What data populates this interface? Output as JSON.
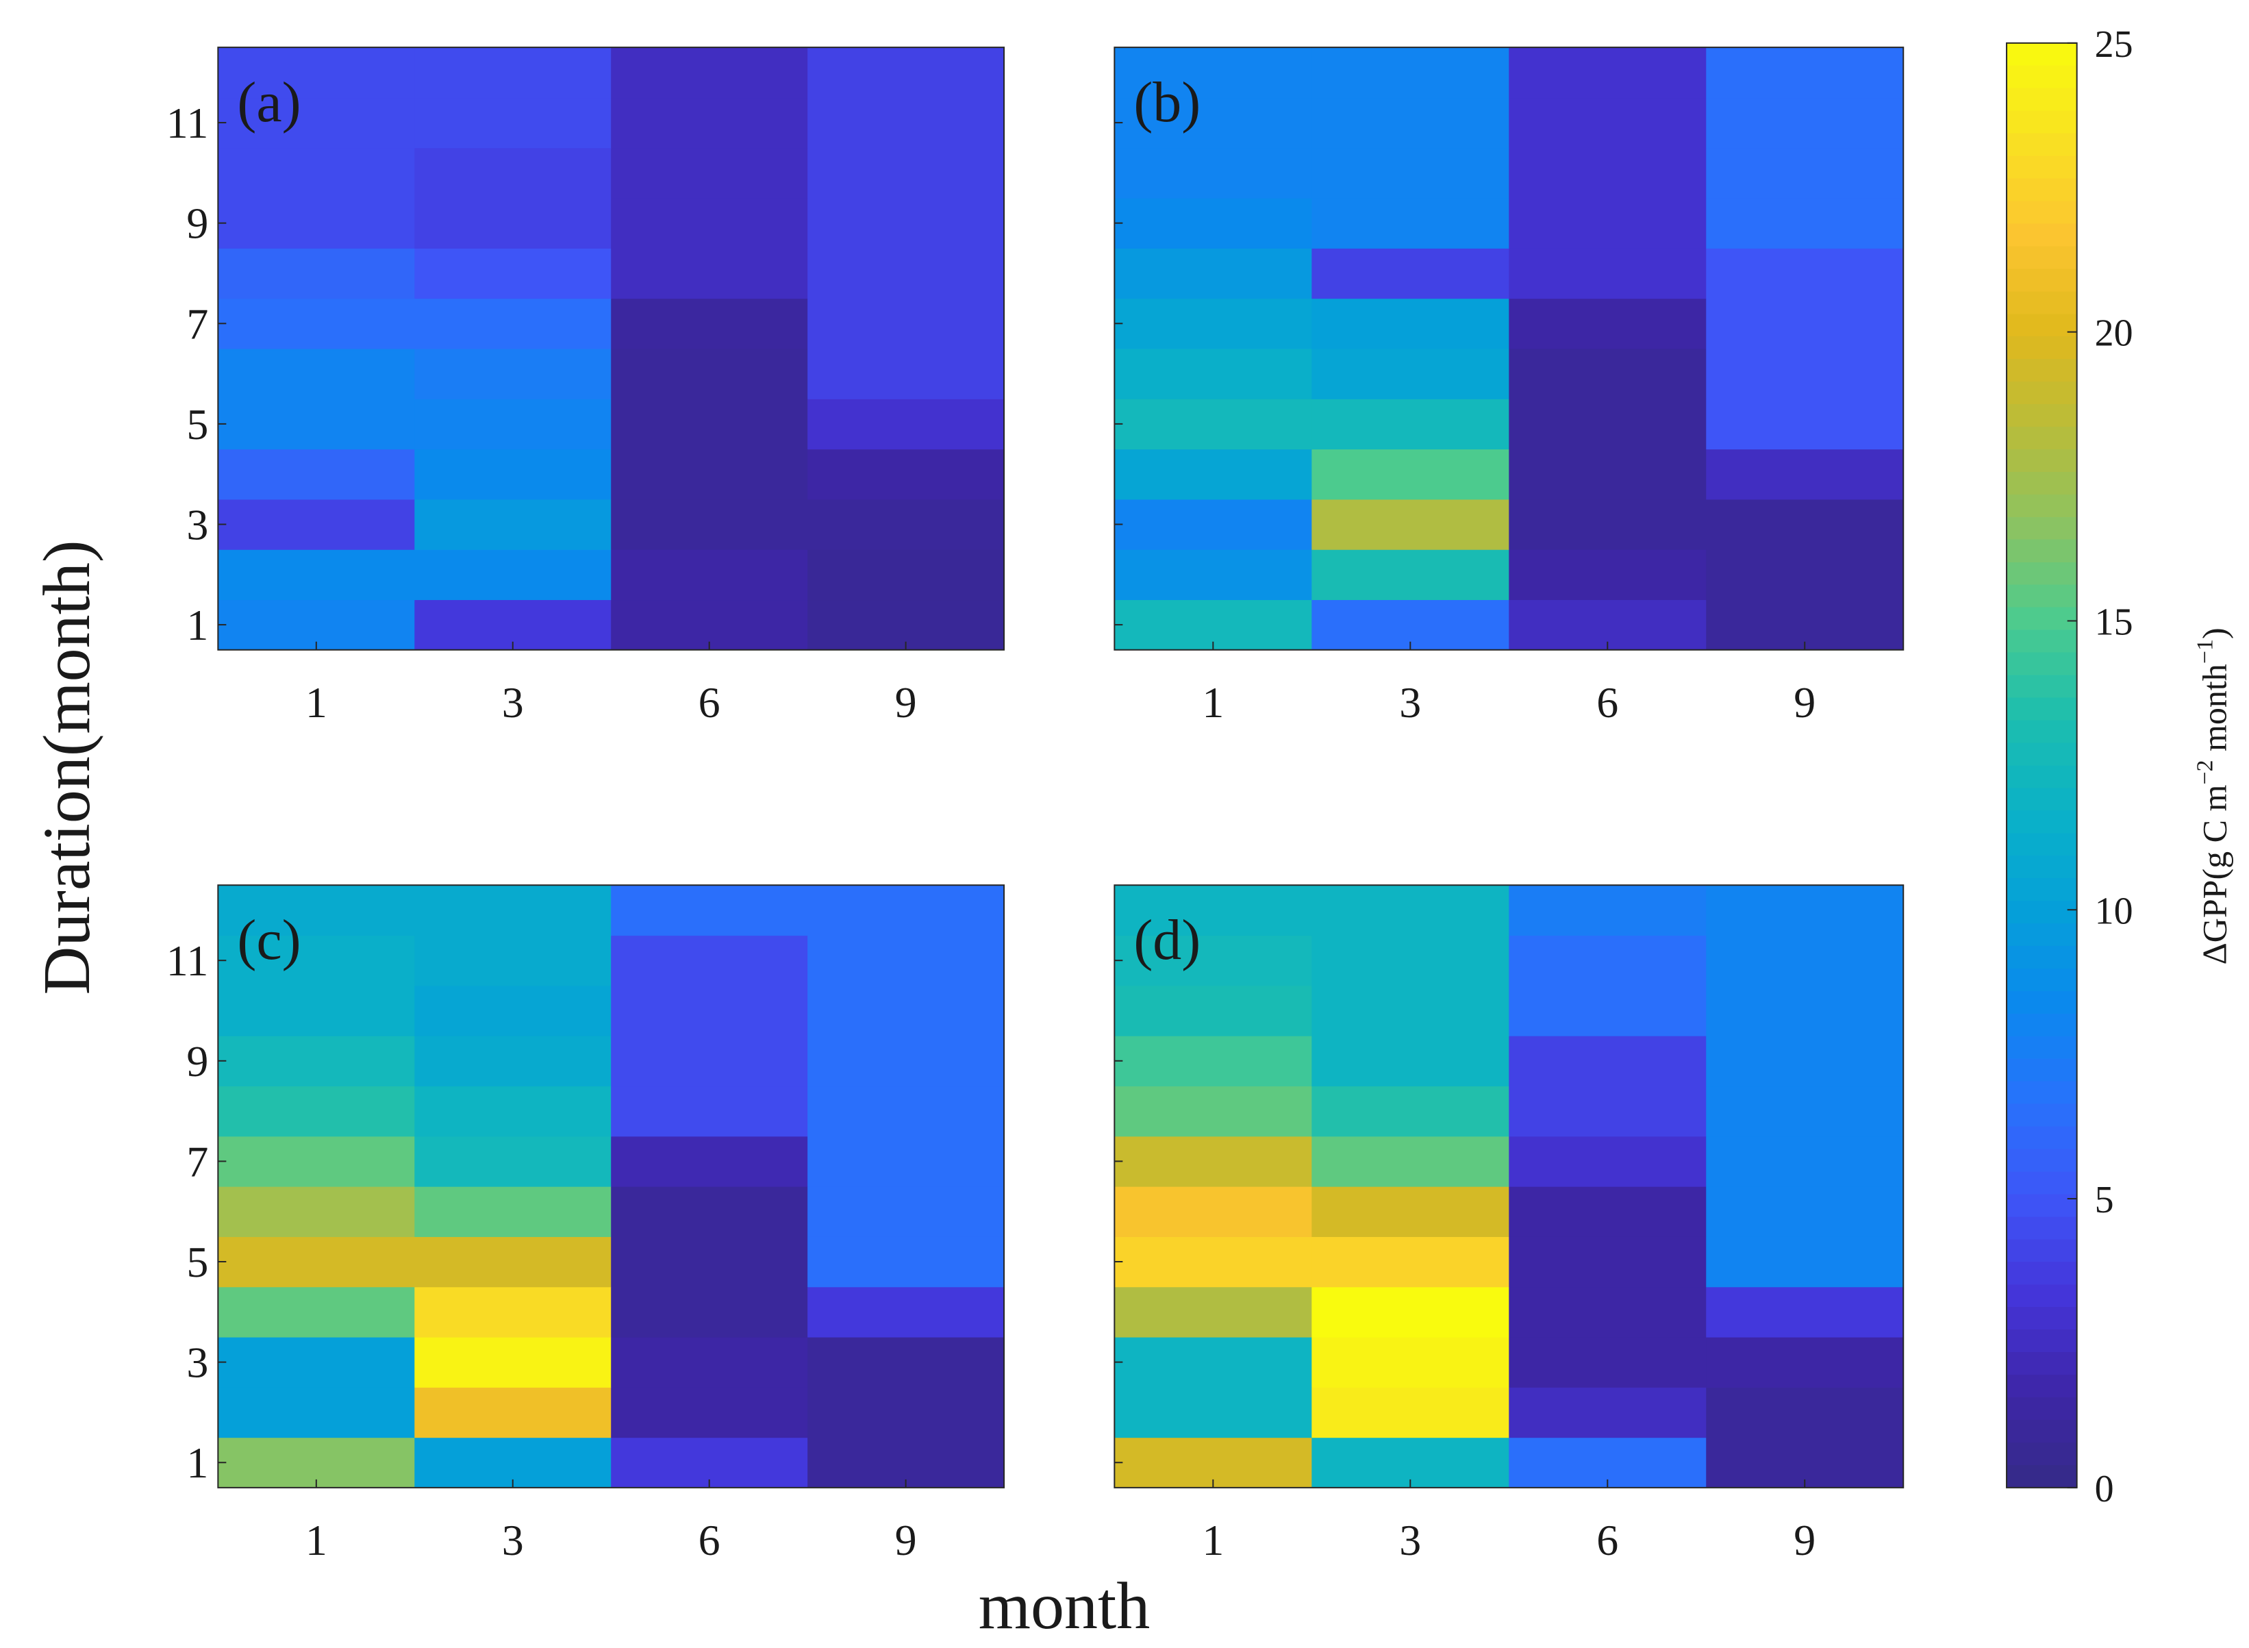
{
  "chart_data": {
    "type": "heatmap",
    "xlabel": "month",
    "ylabel": "Duration(month)",
    "x_categories": [
      "1",
      "3",
      "6",
      "9"
    ],
    "x_ticks": [
      "1",
      "3",
      "6",
      "9"
    ],
    "y_rows": [
      1,
      2,
      3,
      4,
      5,
      6,
      7,
      8,
      9,
      10,
      11,
      12
    ],
    "y_ticks": [
      "1",
      "3",
      "5",
      "7",
      "9",
      "11"
    ],
    "panels": [
      {
        "label": "(a)",
        "values": [
          [
            8,
            3.5,
            1.5,
            0.8
          ],
          [
            8.5,
            8.5,
            1.5,
            0.8
          ],
          [
            4,
            9.5,
            1,
            1
          ],
          [
            6,
            8.5,
            1,
            1.5
          ],
          [
            8,
            8,
            1,
            3
          ],
          [
            8,
            7.5,
            1,
            4
          ],
          [
            6.5,
            6.5,
            1.2,
            4
          ],
          [
            6,
            5,
            2.5,
            4
          ],
          [
            4.5,
            4,
            2.5,
            4
          ],
          [
            4.5,
            4,
            2.5,
            4
          ],
          [
            4.5,
            4.5,
            2.5,
            4
          ],
          [
            4.5,
            4.5,
            2.5,
            4
          ]
        ]
      },
      {
        "label": "(b)",
        "values": [
          [
            12.5,
            6.5,
            2.5,
            1
          ],
          [
            9,
            13,
            1.5,
            1
          ],
          [
            8,
            18,
            1,
            1
          ],
          [
            10.5,
            15,
            1,
            2.5
          ],
          [
            12.5,
            12.5,
            1,
            5
          ],
          [
            11.5,
            10.5,
            1,
            5
          ],
          [
            10.5,
            10,
            1.5,
            5
          ],
          [
            9.5,
            4,
            3,
            5
          ],
          [
            8.5,
            8,
            3,
            6.5
          ],
          [
            8,
            8,
            3,
            6.5
          ],
          [
            8,
            8,
            3,
            6.5
          ],
          [
            8,
            8,
            3,
            6.5
          ]
        ]
      },
      {
        "label": "(c)",
        "values": [
          [
            16.5,
            10,
            3.5,
            1
          ],
          [
            10,
            21,
            1.5,
            1
          ],
          [
            10,
            24.5,
            1.5,
            1
          ],
          [
            15.5,
            23,
            1,
            3.5
          ],
          [
            19.5,
            19.5,
            1,
            6.5
          ],
          [
            17.5,
            15.5,
            1,
            6.5
          ],
          [
            15.5,
            12.5,
            2,
            6.5
          ],
          [
            13.5,
            12,
            4.5,
            6.5
          ],
          [
            12.5,
            11,
            4.5,
            6.5
          ],
          [
            11.5,
            10.5,
            4.5,
            6.5
          ],
          [
            11.5,
            11,
            4.5,
            6.5
          ],
          [
            11,
            11,
            6.5,
            6.5
          ]
        ]
      },
      {
        "label": "(d)",
        "values": [
          [
            19.5,
            12,
            6.5,
            1
          ],
          [
            12,
            24,
            2.5,
            1
          ],
          [
            12,
            24.5,
            1.5,
            1.5
          ],
          [
            18,
            25,
            1.5,
            3.5
          ],
          [
            22.5,
            22.5,
            1.5,
            8
          ],
          [
            21.5,
            19.5,
            1.5,
            8
          ],
          [
            19,
            15.5,
            3,
            8
          ],
          [
            15.5,
            13.5,
            4,
            8
          ],
          [
            14.5,
            12,
            4,
            8
          ],
          [
            13,
            12,
            6.5,
            8
          ],
          [
            12.5,
            12,
            6.5,
            8
          ],
          [
            12,
            12,
            7.5,
            8
          ]
        ]
      }
    ],
    "colorbar": {
      "label_prefix": "ΔGPP(g C m",
      "label_exp1": "−2",
      "label_mid": " month",
      "label_exp2": "−1",
      "label_suffix": ")",
      "min": 0,
      "max": 25,
      "ticks": [
        "0",
        "5",
        "10",
        "15",
        "20",
        "25"
      ],
      "colormap": "parula",
      "colors": [
        "#352a87",
        "#3e26a8",
        "#4435d9",
        "#3e55f7",
        "#2872fb",
        "#0b88ee",
        "#05a0d9",
        "#0ab1c7",
        "#1dbeae",
        "#4ccb8e",
        "#8cc361",
        "#b9bc3a",
        "#e0b91d",
        "#fbc530",
        "#f9e122",
        "#f9fb0e"
      ]
    }
  }
}
